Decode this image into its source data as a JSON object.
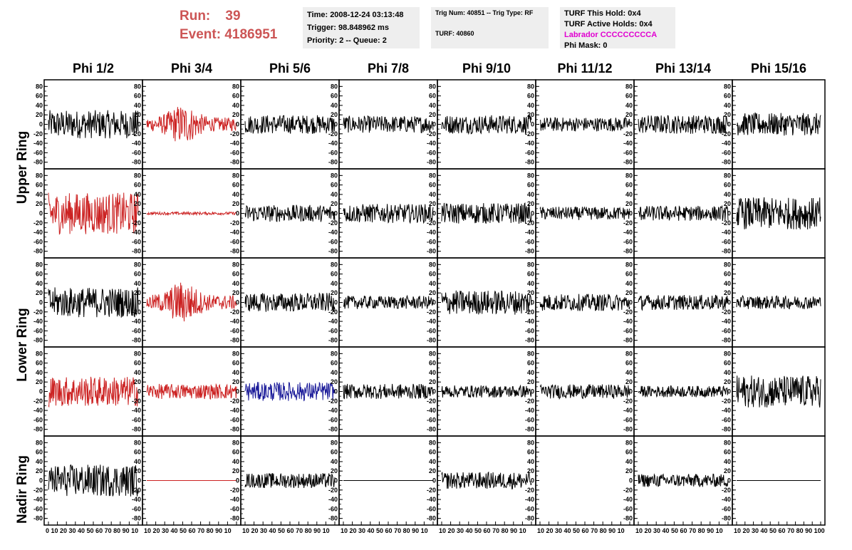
{
  "run_info": {
    "run_label": "Run:",
    "run_value": "39",
    "event_label": "Event:",
    "event_value": "4186951"
  },
  "info_box_1": [
    "Time: 2008-12-24 03:13:48",
    "Trigger: 98.848962 ms",
    "Priority: 2 -- Queue: 2"
  ],
  "info_box_2": [
    "Trig Num: 40851 -- Trig Type: RF",
    "TURF: 40860"
  ],
  "info_box_3": {
    "this_hold": "TURF This Hold: 0x4",
    "active_holds": "TURF Active Holds: 0x4",
    "labrador": "Labrador CCCCCCCCCA",
    "phi_mask": "Phi Mask: 0"
  },
  "columns": [
    "Phi 1/2",
    "Phi 3/4",
    "Phi 5/6",
    "Phi 7/8",
    "Phi 9/10",
    "Phi 11/12",
    "Phi 13/14",
    "Phi 15/16"
  ],
  "rings": [
    "Upper Ring",
    "Lower Ring",
    "Nadir Ring"
  ],
  "colors": {
    "red": "#cc2222",
    "blue": "#1a1a99",
    "black": "#000000",
    "title": "#cc5555",
    "magenta": "#e000d0",
    "box": "#eeeeee"
  },
  "chart_data": {
    "type": "line",
    "y_ticks": [
      "80",
      "60",
      "40",
      "20",
      "0",
      "-20",
      "-40",
      "-60",
      "-80"
    ],
    "ylim": [
      -85,
      85
    ],
    "xlim": [
      0,
      100
    ],
    "x_tick_strings": [
      "0 10 20 30 40 50 60 70 80 90 10",
      "10 20 30 40 50 60 70 80 90 10",
      "10 20 30 40 50 60 70 80 90 10",
      "10 20 30 40 50 60 70 80 90 10",
      "10 20 30 40 50 60 70 80 90 10",
      "10 20 30 40 50 60 70 80 90 10",
      "10 20 30 40 50 60 70 80 90 10",
      "10 20 30 40 50 60 70 80 90 100"
    ],
    "panels": [
      {
        "row": 0,
        "col": 0,
        "color": "black",
        "amp": 30,
        "env": "flat"
      },
      {
        "row": 0,
        "col": 1,
        "color": "red",
        "amp": 32,
        "env": "burst"
      },
      {
        "row": 0,
        "col": 2,
        "color": "black",
        "amp": 20,
        "env": "flat"
      },
      {
        "row": 0,
        "col": 3,
        "color": "black",
        "amp": 18,
        "env": "flat"
      },
      {
        "row": 0,
        "col": 4,
        "color": "black",
        "amp": 20,
        "env": "flat"
      },
      {
        "row": 0,
        "col": 5,
        "color": "black",
        "amp": 15,
        "env": "flat"
      },
      {
        "row": 0,
        "col": 6,
        "color": "black",
        "amp": 20,
        "env": "flat"
      },
      {
        "row": 0,
        "col": 7,
        "color": "black",
        "amp": 24,
        "env": "flat"
      },
      {
        "row": 1,
        "col": 0,
        "color": "red",
        "amp": 44,
        "env": "flat"
      },
      {
        "row": 1,
        "col": 1,
        "color": "red",
        "amp": 3,
        "env": "flat"
      },
      {
        "row": 1,
        "col": 2,
        "color": "black",
        "amp": 18,
        "env": "flat"
      },
      {
        "row": 1,
        "col": 3,
        "color": "black",
        "amp": 20,
        "env": "flat"
      },
      {
        "row": 1,
        "col": 4,
        "color": "black",
        "amp": 22,
        "env": "flat"
      },
      {
        "row": 1,
        "col": 5,
        "color": "black",
        "amp": 14,
        "env": "flat"
      },
      {
        "row": 1,
        "col": 6,
        "color": "black",
        "amp": 16,
        "env": "flat"
      },
      {
        "row": 1,
        "col": 7,
        "color": "black",
        "amp": 34,
        "env": "flat"
      },
      {
        "row": 2,
        "col": 0,
        "color": "black",
        "amp": 32,
        "env": "flat"
      },
      {
        "row": 2,
        "col": 1,
        "color": "red",
        "amp": 34,
        "env": "burst"
      },
      {
        "row": 2,
        "col": 2,
        "color": "black",
        "amp": 20,
        "env": "flat"
      },
      {
        "row": 2,
        "col": 3,
        "color": "black",
        "amp": 14,
        "env": "flat"
      },
      {
        "row": 2,
        "col": 4,
        "color": "black",
        "amp": 26,
        "env": "flat"
      },
      {
        "row": 2,
        "col": 5,
        "color": "black",
        "amp": 18,
        "env": "flat"
      },
      {
        "row": 2,
        "col": 6,
        "color": "black",
        "amp": 16,
        "env": "flat"
      },
      {
        "row": 2,
        "col": 7,
        "color": "black",
        "amp": 14,
        "env": "flat"
      },
      {
        "row": 3,
        "col": 0,
        "color": "red",
        "amp": 32,
        "env": "flat"
      },
      {
        "row": 3,
        "col": 1,
        "color": "red",
        "amp": 16,
        "env": "flat"
      },
      {
        "row": 3,
        "col": 2,
        "color": "blue",
        "amp": 20,
        "env": "flat"
      },
      {
        "row": 3,
        "col": 3,
        "color": "black",
        "amp": 16,
        "env": "flat"
      },
      {
        "row": 3,
        "col": 4,
        "color": "black",
        "amp": 13,
        "env": "flat"
      },
      {
        "row": 3,
        "col": 5,
        "color": "black",
        "amp": 15,
        "env": "flat"
      },
      {
        "row": 3,
        "col": 6,
        "color": "black",
        "amp": 12,
        "env": "flat"
      },
      {
        "row": 3,
        "col": 7,
        "color": "black",
        "amp": 34,
        "env": "flat"
      },
      {
        "row": 4,
        "col": 0,
        "color": "black",
        "amp": 34,
        "env": "flat"
      },
      {
        "row": 4,
        "col": 1,
        "color": "red",
        "amp": 0,
        "env": "flat"
      },
      {
        "row": 4,
        "col": 2,
        "color": "black",
        "amp": 16,
        "env": "flat"
      },
      {
        "row": 4,
        "col": 3,
        "color": "black",
        "amp": 0,
        "env": "flat"
      },
      {
        "row": 4,
        "col": 4,
        "color": "black",
        "amp": 18,
        "env": "flat"
      },
      {
        "row": 4,
        "col": 5,
        "color": "black",
        "amp": 0,
        "env": "none"
      },
      {
        "row": 4,
        "col": 6,
        "color": "black",
        "amp": 14,
        "env": "flat"
      },
      {
        "row": 4,
        "col": 7,
        "color": "black",
        "amp": 0,
        "env": "flat"
      }
    ]
  }
}
